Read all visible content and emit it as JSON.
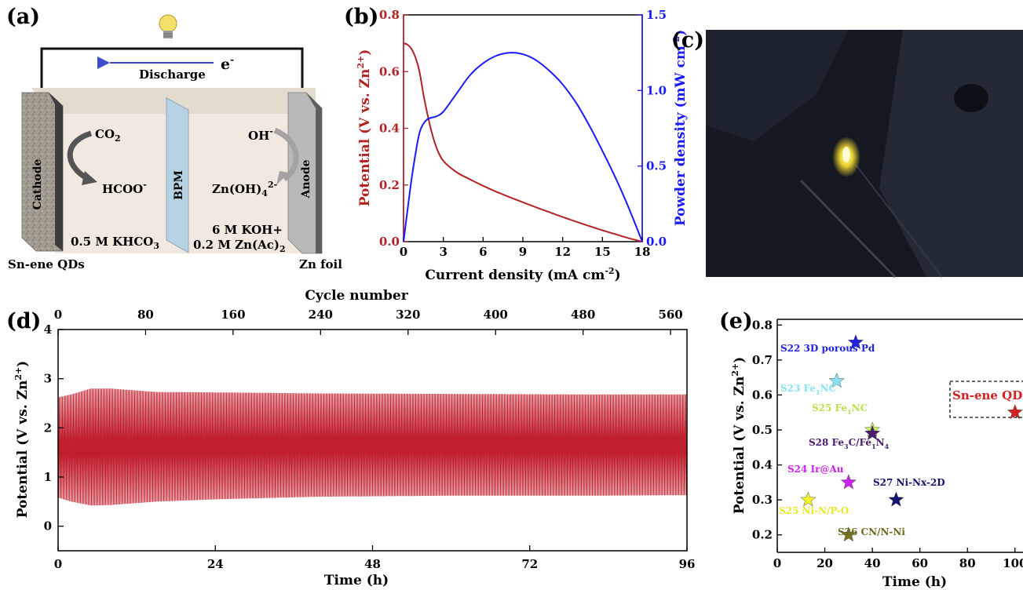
{
  "panels": {
    "a": {
      "label": "(a)",
      "electron": "e",
      "electron_sup": "-",
      "discharge": "Discharge",
      "co2": "CO",
      "co2_sub": "2",
      "formate": "HCOO",
      "formate_sup": "-",
      "cathode": "Cathode",
      "bpm": "BPM",
      "anode": "Anode",
      "oh": "OH",
      "oh_sup": "-",
      "zincate": "Zn(OH)",
      "zincate_sub": "4",
      "zincate_sup": "2-",
      "catholyte": "0.5 M KHCO",
      "catholyte_sub": "3",
      "anolyte_1": "6 M KOH+",
      "anolyte_2": "0.2 M Zn(Ac)",
      "anolyte_2_sub": "2",
      "cathode_material": "Sn-ene QDs",
      "anode_material": "Zn foil",
      "colors": {
        "cathode_plate": "#9b958b",
        "bpm": "#b7d3e3",
        "anode_plate": "#b9b9b9",
        "electrolyte": "#f1e9df",
        "arrow": "#555555",
        "electron_arrow": "#3b4fc8"
      }
    },
    "b": {
      "label": "(b)",
      "xlabel": "Current density (mA cm",
      "xlabel_sup": "-2",
      "xlabel_end": ")",
      "ylabel_left": "Potential (V vs. Zn",
      "ylabel_left_sup": "2+",
      "ylabel_left_end": ")",
      "ylabel_right": "Powder density (mW cm",
      "ylabel_right_sup": "-2",
      "ylabel_right_end": ")",
      "x_ticks": [
        "0",
        "3",
        "6",
        "9",
        "12",
        "15",
        "18"
      ],
      "y_left_ticks": [
        "0.0",
        "0.2",
        "0.4",
        "0.6",
        "0.8"
      ],
      "y_right_ticks": [
        "0.0",
        "0.5",
        "1.0",
        "1.5"
      ]
    },
    "c": {
      "label": "(c)"
    },
    "d": {
      "label": "(d)",
      "top_xlabel": "Cycle number",
      "xlabel": "Time (h)",
      "ylabel": "Potential (V vs. Zn",
      "ylabel_sup": "2+",
      "ylabel_end": ")",
      "x_ticks": [
        "0",
        "24",
        "48",
        "72",
        "96"
      ],
      "top_ticks": [
        "0",
        "80",
        "160",
        "240",
        "320",
        "400",
        "480",
        "560"
      ],
      "y_ticks": [
        "0",
        "1",
        "2",
        "3",
        "4"
      ]
    },
    "e": {
      "label": "(e)",
      "xlabel": "Time (h)",
      "ylabel": "Potential (V vs. Zn",
      "ylabel_sup": "2+",
      "ylabel_end": ")",
      "x_ticks": [
        "0",
        "20",
        "40",
        "60",
        "80",
        "100"
      ],
      "y_ticks": [
        "0.2",
        "0.3",
        "0.4",
        "0.5",
        "0.6",
        "0.7",
        "0.8"
      ],
      "labels": {
        "s22": "S22  3D porous Pd",
        "s23a": "S23  Fe",
        "s23b": "1",
        "s23c": "NC",
        "s25fe_a": "S25  Fe",
        "s25fe_b": "1",
        "s25fe_c": "NC",
        "s28a": "S28  Fe",
        "s28b": "3",
        "s28c": "C/Fe",
        "s28d": "1",
        "s28e": "N",
        "s28f": "4",
        "s24": "S24  Ir@Au",
        "s27": "S27  Ni-Nx-2D",
        "s25ni": "S25  Ni-N/P-O",
        "s26": "S26  CN/N-Ni",
        "snene": "Sn-ene QDs"
      }
    }
  },
  "chart_data": [
    {
      "panel": "b",
      "type": "line",
      "xlabel": "Current density (mA cm-2)",
      "ylabel": "Potential (V vs. Zn2+)",
      "ylabel_right": "Powder density (mW cm-2)",
      "xlim": [
        0,
        18
      ],
      "ylim": [
        0,
        0.8
      ],
      "ylim_right": [
        0,
        1.5
      ],
      "series": [
        {
          "axis": "left",
          "color": "#b22222",
          "x": [
            0,
            0.3,
            0.6,
            0.9,
            1.2,
            1.5,
            1.8,
            2.1,
            2.5,
            3,
            4,
            5,
            6,
            7,
            8,
            9,
            10,
            11,
            12,
            13,
            14,
            15,
            16,
            17,
            18
          ],
          "values": [
            0.7,
            0.695,
            0.68,
            0.65,
            0.6,
            0.52,
            0.45,
            0.39,
            0.33,
            0.285,
            0.245,
            0.22,
            0.197,
            0.176,
            0.157,
            0.139,
            0.121,
            0.104,
            0.087,
            0.071,
            0.055,
            0.04,
            0.026,
            0.012,
            0.0
          ]
        },
        {
          "axis": "right",
          "color": "#1a1aff",
          "x": [
            0,
            0.3,
            0.6,
            0.9,
            1.2,
            1.5,
            1.8,
            2.1,
            2.5,
            3,
            4,
            5,
            6,
            7,
            8,
            9,
            10,
            11,
            12,
            13,
            14,
            15,
            16,
            17,
            18
          ],
          "values": [
            0.0,
            0.21,
            0.41,
            0.58,
            0.72,
            0.78,
            0.81,
            0.82,
            0.83,
            0.86,
            0.98,
            1.1,
            1.18,
            1.23,
            1.25,
            1.24,
            1.2,
            1.13,
            1.04,
            0.92,
            0.77,
            0.6,
            0.42,
            0.22,
            0.0
          ]
        }
      ]
    },
    {
      "panel": "d",
      "type": "line",
      "xlabel": "Time (h)",
      "ylabel": "Potential (V vs. Zn2+)",
      "top_xlabel": "Cycle number",
      "xlim": [
        0,
        96
      ],
      "ylim": [
        -0.5,
        4
      ],
      "cycles": 575,
      "color": "#c0202e",
      "envelope_upper": {
        "x": [
          0,
          2,
          5,
          8,
          15,
          25,
          40,
          60,
          80,
          96
        ],
        "values": [
          2.62,
          2.68,
          2.8,
          2.8,
          2.73,
          2.72,
          2.7,
          2.69,
          2.68,
          2.68
        ]
      },
      "envelope_lower": {
        "x": [
          0,
          2,
          5,
          8,
          15,
          25,
          40,
          60,
          80,
          96
        ],
        "values": [
          0.58,
          0.5,
          0.42,
          0.43,
          0.5,
          0.55,
          0.6,
          0.62,
          0.62,
          0.63
        ]
      }
    },
    {
      "panel": "e",
      "type": "scatter",
      "xlabel": "Time (h)",
      "ylabel": "Potential (V vs. Zn2+)",
      "xlim": [
        0,
        105
      ],
      "ylim": [
        0.15,
        0.8
      ],
      "points": [
        {
          "label": "S22 3D porous Pd",
          "x": 33,
          "y": 0.75,
          "color": "#2222dd"
        },
        {
          "label": "S23 Fe1NC",
          "x": 25,
          "y": 0.64,
          "color": "#88e2f2"
        },
        {
          "label": "S25 Fe1NC",
          "x": 40,
          "y": 0.5,
          "color": "#c8f05a"
        },
        {
          "label": "S28 Fe3C/Fe1N4",
          "x": 40,
          "y": 0.49,
          "color": "#4a1a6e"
        },
        {
          "label": "S24 Ir@Au",
          "x": 30,
          "y": 0.35,
          "color": "#cc22ee"
        },
        {
          "label": "S27 Ni-Nx-2D",
          "x": 50,
          "y": 0.3,
          "color": "#13136e"
        },
        {
          "label": "S25 Ni-N/P-O",
          "x": 13,
          "y": 0.3,
          "color": "#f2f228"
        },
        {
          "label": "S26 CN/N-Ni",
          "x": 30,
          "y": 0.2,
          "color": "#777722"
        },
        {
          "label": "Sn-ene QDs",
          "x": 100,
          "y": 0.55,
          "color": "#d22020"
        }
      ]
    }
  ]
}
